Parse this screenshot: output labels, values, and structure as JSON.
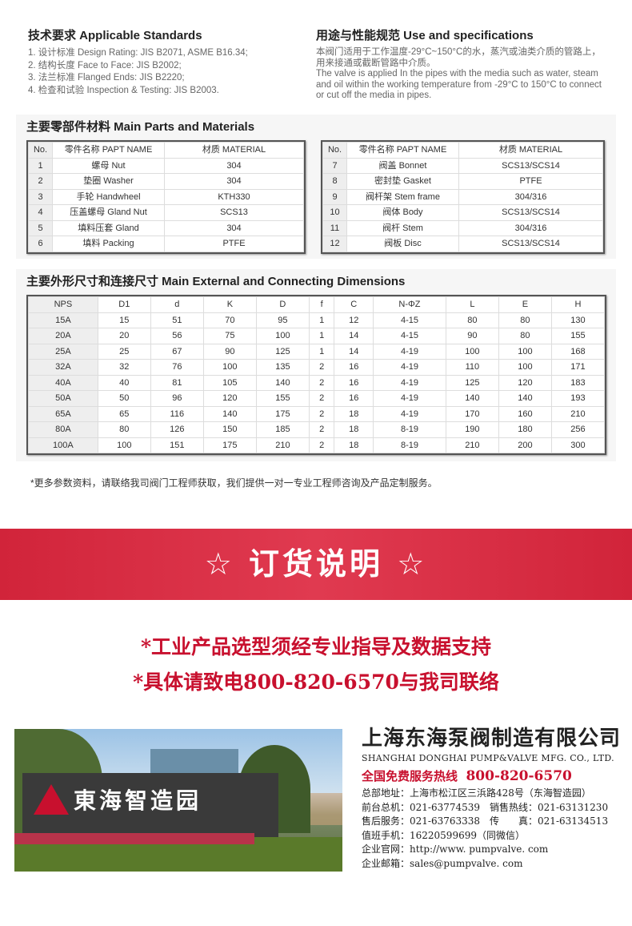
{
  "standards": {
    "title": "技术要求 Applicable Standards",
    "items": [
      "1. 设计标准 Design Rating: JIS B2071, ASME B16.34;",
      "2. 结构长度 Face to Face: JIS B2002;",
      "3. 法兰标准 Flanged Ends: JIS B2220;",
      "4. 检查和试验 Inspection & Testing: JIS B2003."
    ]
  },
  "use": {
    "title": "用途与性能规范 Use and specifications",
    "cn": "本阀门适用于工作温度-29°C~150°C的水，蒸汽或油类介质的管路上，用来接通或截断管路中介质。",
    "en": "The valve is applied In the pipes with the media such as water, steam and oil within the working temperature from -29°C to 150°C to connect or cut off the media in pipes."
  },
  "parts": {
    "title": "主要零部件材料 Main Parts and Materials",
    "headers": [
      "No.",
      "零件名称 PAPT NAME",
      "材质 MATERIAL"
    ],
    "left": [
      [
        "1",
        "螺母 Nut",
        "304"
      ],
      [
        "2",
        "垫圈 Washer",
        "304"
      ],
      [
        "3",
        "手轮 Handwheel",
        "KTH330"
      ],
      [
        "4",
        "压盖螺母 Gland Nut",
        "SCS13"
      ],
      [
        "5",
        "填料压套 Gland",
        "304"
      ],
      [
        "6",
        "填料 Packing",
        "PTFE"
      ]
    ],
    "right": [
      [
        "7",
        "阀盖 Bonnet",
        "SCS13/SCS14"
      ],
      [
        "8",
        "密封垫 Gasket",
        "PTFE"
      ],
      [
        "9",
        "阀杆架 Stem frame",
        "304/316"
      ],
      [
        "10",
        "阀体 Body",
        "SCS13/SCS14"
      ],
      [
        "11",
        "阀杆 Stem",
        "304/316"
      ],
      [
        "12",
        "阀板 Disc",
        "SCS13/SCS14"
      ]
    ]
  },
  "dims": {
    "title": "主要外形尺寸和连接尺寸 Main External and Connecting Dimensions",
    "headers": [
      "NPS",
      "D1",
      "d",
      "K",
      "D",
      "f",
      "C",
      "N-ΦZ",
      "L",
      "E",
      "H"
    ],
    "rows": [
      [
        "15A",
        "15",
        "51",
        "70",
        "95",
        "1",
        "12",
        "4-15",
        "80",
        "80",
        "130"
      ],
      [
        "20A",
        "20",
        "56",
        "75",
        "100",
        "1",
        "14",
        "4-15",
        "90",
        "80",
        "155"
      ],
      [
        "25A",
        "25",
        "67",
        "90",
        "125",
        "1",
        "14",
        "4-19",
        "100",
        "100",
        "168"
      ],
      [
        "32A",
        "32",
        "76",
        "100",
        "135",
        "2",
        "16",
        "4-19",
        "110",
        "100",
        "171"
      ],
      [
        "40A",
        "40",
        "81",
        "105",
        "140",
        "2",
        "16",
        "4-19",
        "125",
        "120",
        "183"
      ],
      [
        "50A",
        "50",
        "96",
        "120",
        "155",
        "2",
        "16",
        "4-19",
        "140",
        "140",
        "193"
      ],
      [
        "65A",
        "65",
        "116",
        "140",
        "175",
        "2",
        "18",
        "4-19",
        "170",
        "160",
        "210"
      ],
      [
        "80A",
        "80",
        "126",
        "150",
        "185",
        "2",
        "18",
        "8-19",
        "190",
        "180",
        "256"
      ],
      [
        "100A",
        "100",
        "151",
        "175",
        "210",
        "2",
        "18",
        "8-19",
        "210",
        "200",
        "300"
      ]
    ]
  },
  "note": "*更多参数资料，请联络我司阀门工程师获取，我们提供一对一专业工程师咨询及产品定制服务。",
  "banner": "☆ 订货说明 ☆",
  "order_lines": [
    "*工业产品选型须经专业指导及数据支持",
    "*具体请致电800-820-6570与我司联络"
  ],
  "photo": {
    "sign": "東海智造园"
  },
  "company": {
    "name_cn": "上海东海泵阀制造有限公司",
    "name_en": "SHANGHAI DONGHAI PUMP&VALVE MFG. CO., LTD.",
    "hotline_label": "全国免费服务热线",
    "hotline": "800-820-6570",
    "lines": [
      "总部地址：上海市松江区三浜路428号（东海智造园）",
      "前台总机：021-63774539　销售热线：021-63131230",
      "售后服务：021-63763338　传　　真：021-63134513",
      "值班手机：16220599699（同微信）",
      "企业官网：http://www. pumpvalve. com",
      "企业邮箱：sales@pumpvalve. com"
    ]
  },
  "colors": {
    "accent": "#c8102e",
    "banner": "#d62d45"
  }
}
